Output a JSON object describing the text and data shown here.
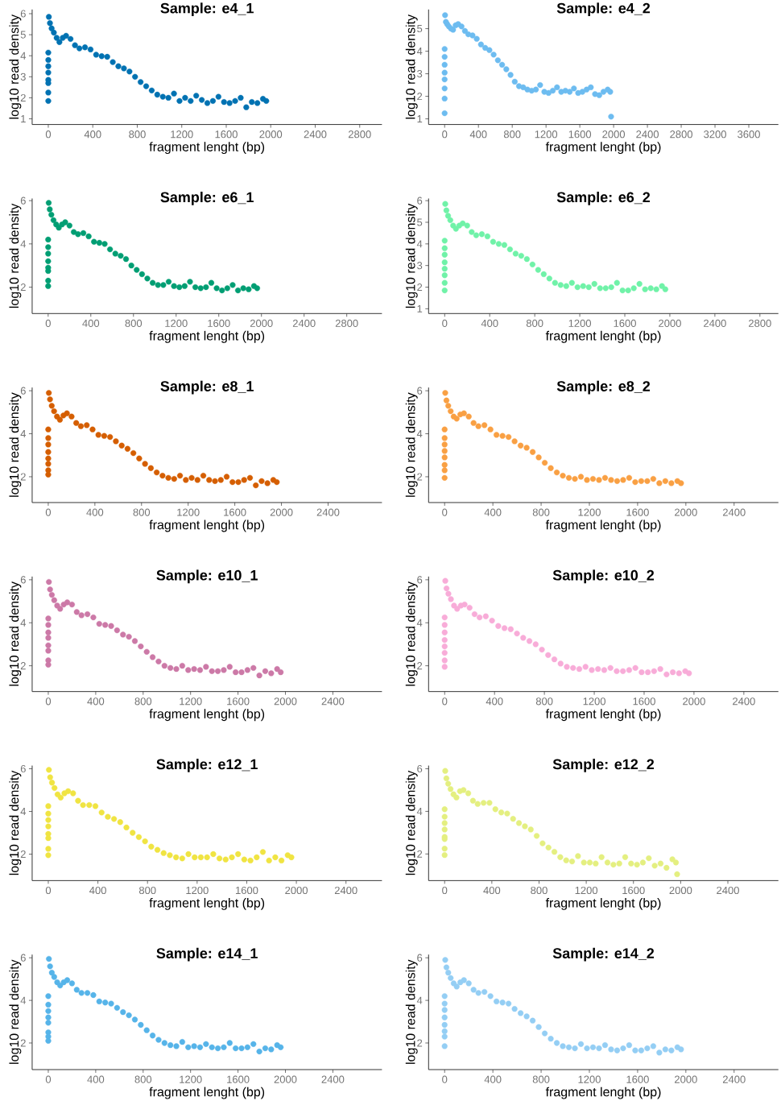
{
  "chart_data": [
    {
      "type": "scatter",
      "title": "Sample: e4_1",
      "xlabel": "fragment lenght (bp)",
      "ylabel": "log10 read density",
      "color": "#0072b2",
      "marker": "circle",
      "xlim": [
        -145,
        3000
      ],
      "xticks": [
        0,
        400,
        800,
        1200,
        1600,
        2000,
        2400,
        2800
      ],
      "ylim": [
        0.73,
        6.2
      ],
      "yticks": [
        1,
        2,
        3,
        4,
        5,
        6
      ],
      "x": [
        0,
        0,
        0,
        0,
        0,
        0,
        0,
        0,
        5,
        15,
        30,
        50,
        75,
        100,
        130,
        160,
        200,
        240,
        280,
        330,
        380,
        430,
        480,
        530,
        580,
        630,
        680,
        730,
        780,
        830,
        880,
        930,
        980,
        1030,
        1080,
        1130,
        1180,
        1230,
        1280,
        1330,
        1380,
        1430,
        1480,
        1530,
        1580,
        1630,
        1680,
        1730,
        1780,
        1830,
        1880,
        1930,
        1960
      ],
      "values": [
        4.15,
        3.8,
        3.5,
        3.2,
        2.85,
        2.7,
        2.25,
        1.85,
        5.85,
        5.55,
        5.3,
        5.1,
        4.85,
        4.65,
        4.85,
        4.95,
        4.8,
        4.5,
        4.35,
        4.4,
        4.3,
        4.05,
        3.98,
        3.95,
        3.7,
        3.5,
        3.4,
        3.25,
        3.0,
        2.75,
        2.55,
        2.35,
        2.15,
        2.05,
        2.0,
        2.2,
        1.85,
        2.0,
        1.85,
        2.1,
        1.9,
        1.75,
        1.85,
        2.05,
        1.8,
        1.75,
        1.85,
        2.0,
        1.55,
        1.8,
        1.75,
        1.95,
        1.85
      ]
    },
    {
      "type": "scatter",
      "title": "Sample: e4_2",
      "xlabel": "fragment lenght (bp)",
      "ylabel": "log10 read density",
      "color": "#6dbcf0",
      "marker": "circle",
      "xlim": [
        -190,
        3950
      ],
      "xticks": [
        0,
        400,
        800,
        1200,
        1600,
        2000,
        2400,
        2800,
        3200,
        3600
      ],
      "ylim": [
        0.75,
        5.85
      ],
      "yticks": [
        1,
        2,
        3,
        4,
        5
      ],
      "x": [
        0,
        0,
        0,
        0,
        0,
        0,
        0,
        0,
        5,
        15,
        30,
        50,
        75,
        100,
        130,
        160,
        200,
        240,
        280,
        330,
        380,
        430,
        480,
        530,
        580,
        630,
        680,
        730,
        780,
        830,
        880,
        930,
        980,
        1030,
        1080,
        1130,
        1180,
        1230,
        1280,
        1330,
        1380,
        1430,
        1480,
        1530,
        1580,
        1630,
        1680,
        1730,
        1780,
        1830,
        1880,
        1930,
        1960,
        1970
      ],
      "values": [
        4.1,
        3.75,
        3.4,
        3.05,
        2.75,
        2.35,
        1.9,
        1.25,
        5.6,
        5.3,
        5.2,
        5.1,
        5.0,
        4.95,
        5.15,
        5.2,
        5.1,
        4.9,
        4.75,
        4.7,
        4.55,
        4.3,
        4.15,
        4.05,
        3.85,
        3.6,
        3.4,
        3.2,
        2.95,
        2.65,
        2.45,
        2.4,
        2.3,
        2.25,
        2.3,
        2.5,
        2.2,
        2.15,
        2.25,
        2.4,
        2.2,
        2.25,
        2.2,
        2.35,
        2.15,
        2.2,
        2.3,
        2.4,
        2.1,
        2.05,
        2.2,
        2.3,
        2.2,
        1.1
      ]
    },
    {
      "type": "scatter",
      "title": "Sample: e6_1",
      "xlabel": "fragment lenght (bp)",
      "ylabel": "log10 read density",
      "color": "#009e73",
      "marker": "circle",
      "xlim": [
        -150,
        3130
      ],
      "xticks": [
        0,
        400,
        800,
        1200,
        1600,
        2000,
        2400,
        2800
      ],
      "ylim": [
        0.78,
        6.1
      ],
      "yticks": [
        2,
        4,
        6
      ],
      "x": [
        0,
        0,
        0,
        0,
        0,
        0,
        0,
        0,
        5,
        15,
        30,
        50,
        75,
        100,
        130,
        160,
        200,
        240,
        280,
        330,
        380,
        430,
        480,
        530,
        580,
        630,
        680,
        730,
        780,
        830,
        880,
        930,
        980,
        1030,
        1080,
        1130,
        1180,
        1230,
        1280,
        1330,
        1380,
        1430,
        1480,
        1530,
        1580,
        1630,
        1680,
        1730,
        1780,
        1830,
        1880,
        1930,
        1960
      ],
      "values": [
        4.2,
        3.85,
        3.55,
        3.2,
        2.9,
        2.75,
        2.3,
        2.05,
        5.9,
        5.6,
        5.35,
        5.1,
        4.9,
        4.75,
        4.9,
        5.0,
        4.85,
        4.55,
        4.45,
        4.5,
        4.35,
        4.1,
        4.05,
        4.0,
        3.75,
        3.55,
        3.45,
        3.3,
        3.0,
        2.8,
        2.6,
        2.4,
        2.2,
        2.1,
        2.1,
        2.25,
        2.05,
        2.0,
        2.05,
        2.25,
        2.0,
        1.95,
        2.0,
        2.2,
        1.95,
        1.85,
        1.95,
        2.1,
        1.85,
        1.95,
        1.9,
        2.05,
        1.95
      ]
    },
    {
      "type": "scatter",
      "title": "Sample: e6_2",
      "xlabel": "fragment lenght (bp)",
      "ylabel": "log10 read density",
      "color": "#70f2a8",
      "marker": "circle",
      "xlim": [
        -143,
        2964
      ],
      "xticks": [
        0,
        400,
        800,
        1200,
        1600,
        2000,
        2400,
        2800
      ],
      "ylim": [
        0.78,
        6.1
      ],
      "yticks": [
        1,
        2,
        3,
        4,
        5,
        6
      ],
      "x": [
        0,
        0,
        0,
        0,
        0,
        0,
        0,
        0,
        5,
        15,
        30,
        50,
        75,
        100,
        130,
        160,
        200,
        240,
        280,
        330,
        380,
        430,
        480,
        530,
        580,
        630,
        680,
        730,
        780,
        830,
        880,
        930,
        980,
        1030,
        1080,
        1130,
        1180,
        1230,
        1280,
        1330,
        1380,
        1430,
        1480,
        1530,
        1580,
        1630,
        1680,
        1730,
        1780,
        1830,
        1880,
        1930,
        1960
      ],
      "values": [
        4.15,
        3.8,
        3.5,
        3.15,
        2.85,
        2.55,
        2.2,
        1.85,
        5.85,
        5.55,
        5.3,
        5.1,
        4.85,
        4.7,
        4.85,
        4.95,
        4.85,
        4.55,
        4.4,
        4.45,
        4.35,
        4.1,
        4.0,
        3.95,
        3.75,
        3.55,
        3.45,
        3.3,
        3.05,
        2.8,
        2.6,
        2.4,
        2.2,
        2.1,
        2.05,
        2.2,
        2.0,
        2.05,
        2.0,
        2.15,
        1.95,
        1.95,
        2.0,
        2.2,
        1.85,
        1.85,
        1.95,
        2.15,
        1.9,
        1.95,
        1.9,
        2.05,
        1.9
      ]
    },
    {
      "type": "scatter",
      "title": "Sample: e8_1",
      "xlabel": "fragment lenght (bp)",
      "ylabel": "log10 read density",
      "color": "#d55e00",
      "marker": "circle",
      "xlim": [
        -138,
        2862
      ],
      "xticks": [
        0,
        400,
        800,
        1200,
        1600,
        2000,
        2400
      ],
      "ylim": [
        0.8,
        6.15
      ],
      "yticks": [
        2,
        4,
        6
      ],
      "x": [
        0,
        0,
        0,
        0,
        0,
        0,
        0,
        0,
        5,
        15,
        30,
        50,
        75,
        100,
        130,
        160,
        200,
        240,
        280,
        330,
        380,
        430,
        480,
        530,
        580,
        630,
        680,
        730,
        780,
        830,
        880,
        930,
        980,
        1030,
        1080,
        1130,
        1180,
        1230,
        1280,
        1330,
        1380,
        1430,
        1480,
        1530,
        1580,
        1630,
        1680,
        1730,
        1780,
        1830,
        1880,
        1930,
        1960
      ],
      "values": [
        4.2,
        3.8,
        3.5,
        3.15,
        2.85,
        2.6,
        2.3,
        2.1,
        5.9,
        5.6,
        5.3,
        5.05,
        4.8,
        4.65,
        4.85,
        4.95,
        4.8,
        4.5,
        4.35,
        4.4,
        4.2,
        3.95,
        3.9,
        3.85,
        3.65,
        3.45,
        3.3,
        3.1,
        2.85,
        2.6,
        2.4,
        2.2,
        2.05,
        1.95,
        1.9,
        2.05,
        1.85,
        1.95,
        1.85,
        2.05,
        1.85,
        1.8,
        1.85,
        2.0,
        1.75,
        1.75,
        1.85,
        1.95,
        1.6,
        1.8,
        1.7,
        1.85,
        1.75
      ]
    },
    {
      "type": "scatter",
      "title": "Sample: e8_2",
      "xlabel": "fragment lenght (bp)",
      "ylabel": "log10 read density",
      "color": "#f9a043",
      "marker": "circle",
      "xlim": [
        -133,
        2767
      ],
      "xticks": [
        0,
        400,
        800,
        1200,
        1600,
        2000,
        2400
      ],
      "ylim": [
        0.8,
        6.15
      ],
      "yticks": [
        2,
        4,
        6
      ],
      "x": [
        0,
        0,
        0,
        0,
        0,
        0,
        0,
        0,
        5,
        15,
        30,
        50,
        75,
        100,
        130,
        160,
        200,
        240,
        280,
        330,
        380,
        430,
        480,
        530,
        580,
        630,
        680,
        730,
        780,
        830,
        880,
        930,
        980,
        1030,
        1080,
        1130,
        1180,
        1230,
        1280,
        1330,
        1380,
        1430,
        1480,
        1530,
        1580,
        1630,
        1680,
        1730,
        1780,
        1830,
        1880,
        1930,
        1960
      ],
      "values": [
        4.2,
        3.8,
        3.5,
        3.2,
        2.9,
        2.55,
        2.3,
        1.95,
        5.9,
        5.55,
        5.3,
        5.05,
        4.8,
        4.7,
        4.9,
        4.95,
        4.8,
        4.5,
        4.35,
        4.4,
        4.2,
        3.95,
        3.9,
        3.85,
        3.65,
        3.45,
        3.35,
        3.15,
        2.9,
        2.65,
        2.4,
        2.2,
        2.05,
        1.95,
        1.9,
        2.0,
        1.85,
        1.9,
        1.85,
        1.95,
        1.85,
        1.8,
        1.85,
        1.95,
        1.75,
        1.8,
        1.8,
        1.9,
        1.7,
        1.8,
        1.7,
        1.8,
        1.7
      ]
    },
    {
      "type": "scatter",
      "title": "Sample: e10_1",
      "xlabel": "fragment lenght (bp)",
      "ylabel": "log10 read density",
      "color": "#cc79a7",
      "marker": "circle",
      "xlim": [
        -136,
        2814
      ],
      "xticks": [
        0,
        400,
        800,
        1200,
        1600,
        2000,
        2400
      ],
      "ylim": [
        0.8,
        6.15
      ],
      "yticks": [
        2,
        4,
        6
      ],
      "x": [
        0,
        0,
        0,
        0,
        0,
        0,
        0,
        0,
        5,
        15,
        30,
        50,
        75,
        100,
        130,
        160,
        200,
        240,
        280,
        330,
        380,
        430,
        480,
        530,
        580,
        630,
        680,
        730,
        780,
        830,
        880,
        930,
        980,
        1030,
        1080,
        1130,
        1180,
        1230,
        1280,
        1330,
        1380,
        1430,
        1480,
        1530,
        1580,
        1630,
        1680,
        1730,
        1780,
        1830,
        1880,
        1930,
        1960
      ],
      "values": [
        4.2,
        3.9,
        3.55,
        3.3,
        2.95,
        2.7,
        2.25,
        2.05,
        5.9,
        5.55,
        5.3,
        5.05,
        4.8,
        4.65,
        4.85,
        4.95,
        4.85,
        4.5,
        4.35,
        4.4,
        4.25,
        3.95,
        3.9,
        3.85,
        3.65,
        3.45,
        3.35,
        3.15,
        2.9,
        2.65,
        2.4,
        2.2,
        2.0,
        1.9,
        1.85,
        2.0,
        1.8,
        1.85,
        1.8,
        1.95,
        1.75,
        1.75,
        1.8,
        1.95,
        1.7,
        1.7,
        1.8,
        1.9,
        1.55,
        1.75,
        1.65,
        1.85,
        1.7
      ]
    },
    {
      "type": "scatter",
      "title": "Sample: e10_2",
      "xlabel": "fragment lenght (bp)",
      "ylabel": "log10 read density",
      "color": "#f8acd8",
      "marker": "circle",
      "xlim": [
        -129,
        2677
      ],
      "xticks": [
        0,
        400,
        800,
        1200,
        1600,
        2000,
        2400
      ],
      "ylim": [
        0.8,
        6.15
      ],
      "yticks": [
        2,
        4,
        6
      ],
      "x": [
        0,
        0,
        0,
        0,
        0,
        0,
        0,
        0,
        5,
        15,
        30,
        50,
        75,
        100,
        130,
        160,
        200,
        240,
        280,
        330,
        380,
        430,
        480,
        530,
        580,
        630,
        680,
        730,
        780,
        830,
        880,
        930,
        980,
        1030,
        1080,
        1130,
        1180,
        1230,
        1280,
        1330,
        1380,
        1430,
        1480,
        1530,
        1580,
        1630,
        1680,
        1730,
        1780,
        1830,
        1880,
        1930,
        1960
      ],
      "values": [
        4.25,
        3.9,
        3.55,
        3.2,
        2.9,
        2.6,
        2.25,
        1.95,
        5.95,
        5.6,
        5.35,
        5.1,
        4.8,
        4.65,
        4.8,
        4.85,
        4.7,
        4.4,
        4.25,
        4.3,
        4.1,
        3.85,
        3.75,
        3.7,
        3.5,
        3.3,
        3.15,
        3.0,
        2.75,
        2.5,
        2.3,
        2.1,
        1.95,
        1.9,
        1.85,
        1.95,
        1.8,
        1.85,
        1.8,
        1.9,
        1.75,
        1.75,
        1.8,
        1.9,
        1.7,
        1.7,
        1.75,
        1.85,
        1.6,
        1.7,
        1.65,
        1.75,
        1.65
      ]
    },
    {
      "type": "scatter",
      "title": "Sample: e12_1",
      "xlabel": "fragment lenght (bp)",
      "ylabel": "log10 read density",
      "color": "#f0e442",
      "marker": "circle",
      "xlim": [
        -130,
        2690
      ],
      "xticks": [
        0,
        400,
        800,
        1200,
        1600,
        2000,
        2400
      ],
      "ylim": [
        0.76,
        6.15
      ],
      "yticks": [
        2,
        4,
        6
      ],
      "x": [
        0,
        0,
        0,
        0,
        0,
        0,
        0,
        0,
        5,
        15,
        30,
        50,
        75,
        100,
        130,
        160,
        200,
        240,
        280,
        330,
        380,
        430,
        480,
        530,
        580,
        630,
        680,
        730,
        780,
        830,
        880,
        930,
        980,
        1030,
        1080,
        1130,
        1180,
        1230,
        1280,
        1330,
        1380,
        1430,
        1480,
        1530,
        1580,
        1630,
        1680,
        1730,
        1780,
        1830,
        1880,
        1930,
        1960
      ],
      "values": [
        4.25,
        3.9,
        3.6,
        3.3,
        2.95,
        2.75,
        2.25,
        1.95,
        5.95,
        5.6,
        5.35,
        5.1,
        4.8,
        4.65,
        4.85,
        4.95,
        4.85,
        4.5,
        4.3,
        4.3,
        4.25,
        3.95,
        3.75,
        3.65,
        3.5,
        3.25,
        3.0,
        2.8,
        2.6,
        2.35,
        2.2,
        2.05,
        1.95,
        1.85,
        1.8,
        2.0,
        1.85,
        1.85,
        1.85,
        2.0,
        1.8,
        1.75,
        1.85,
        2.0,
        1.75,
        1.7,
        1.85,
        2.1,
        1.7,
        1.85,
        1.7,
        1.95,
        1.85
      ]
    },
    {
      "type": "scatter",
      "title": "Sample: e12_2",
      "xlabel": "fragment lenght (bp)",
      "ylabel": "log10 read density",
      "color": "#e4ef80",
      "marker": "circle",
      "xlim": [
        -136,
        2828
      ],
      "xticks": [
        0,
        400,
        800,
        1200,
        1600,
        2000,
        2400
      ],
      "ylim": [
        0.75,
        6.15
      ],
      "yticks": [
        2,
        4,
        6
      ],
      "x": [
        0,
        0,
        0,
        0,
        0,
        0,
        0,
        0,
        5,
        15,
        30,
        50,
        75,
        100,
        130,
        160,
        200,
        240,
        280,
        330,
        380,
        430,
        480,
        530,
        580,
        630,
        680,
        730,
        780,
        830,
        880,
        930,
        980,
        1030,
        1080,
        1130,
        1180,
        1230,
        1280,
        1330,
        1380,
        1430,
        1480,
        1530,
        1580,
        1630,
        1680,
        1730,
        1780,
        1830,
        1880,
        1930,
        1960,
        1970
      ],
      "values": [
        4.1,
        3.75,
        3.45,
        3.15,
        2.8,
        2.7,
        2.25,
        1.95,
        5.9,
        5.55,
        5.3,
        5.05,
        4.8,
        4.65,
        4.95,
        5.0,
        4.85,
        4.5,
        4.35,
        4.4,
        4.4,
        4.1,
        3.95,
        3.9,
        3.65,
        3.45,
        3.3,
        3.15,
        2.85,
        2.5,
        2.3,
        2.1,
        1.85,
        1.7,
        1.65,
        1.9,
        1.6,
        1.6,
        1.55,
        1.85,
        1.6,
        1.5,
        1.55,
        1.85,
        1.55,
        1.5,
        1.6,
        1.8,
        1.45,
        1.55,
        1.35,
        1.75,
        1.6,
        1.05
      ]
    },
    {
      "type": "scatter",
      "title": "Sample: e14_1",
      "xlabel": "fragment lenght (bp)",
      "ylabel": "log10 read density",
      "color": "#56b4e9",
      "marker": "circle",
      "xlim": [
        -136,
        2814
      ],
      "xticks": [
        0,
        400,
        800,
        1200,
        1600,
        2000,
        2400
      ],
      "ylim": [
        0.75,
        6.15
      ],
      "yticks": [
        2,
        4,
        6
      ],
      "x": [
        0,
        0,
        0,
        0,
        0,
        0,
        0,
        0,
        5,
        15,
        30,
        50,
        75,
        100,
        130,
        160,
        200,
        240,
        280,
        330,
        380,
        430,
        480,
        530,
        580,
        630,
        680,
        730,
        780,
        830,
        880,
        930,
        980,
        1030,
        1080,
        1130,
        1180,
        1230,
        1280,
        1330,
        1380,
        1430,
        1480,
        1530,
        1580,
        1630,
        1680,
        1730,
        1780,
        1830,
        1880,
        1930,
        1960
      ],
      "values": [
        4.2,
        3.8,
        3.5,
        3.2,
        2.95,
        2.5,
        2.3,
        2.1,
        5.95,
        5.6,
        5.3,
        5.1,
        4.85,
        4.7,
        4.85,
        4.95,
        4.8,
        4.5,
        4.35,
        4.35,
        4.25,
        3.95,
        3.9,
        3.85,
        3.65,
        3.45,
        3.3,
        3.1,
        2.85,
        2.6,
        2.35,
        2.15,
        2.0,
        1.9,
        1.85,
        2.05,
        1.8,
        1.85,
        1.8,
        1.95,
        1.8,
        1.75,
        1.8,
        2.0,
        1.75,
        1.75,
        1.8,
        1.95,
        1.6,
        1.75,
        1.7,
        1.9,
        1.8
      ]
    },
    {
      "type": "scatter",
      "title": "Sample: e14_2",
      "xlabel": "fragment lenght (bp)",
      "ylabel": "log10 read density",
      "color": "#94cef4",
      "marker": "circle",
      "xlim": [
        -133,
        2767
      ],
      "xticks": [
        0,
        400,
        800,
        1200,
        1600,
        2000,
        2400
      ],
      "ylim": [
        0.75,
        6.15
      ],
      "yticks": [
        2,
        4,
        6
      ],
      "x": [
        0,
        0,
        0,
        0,
        0,
        0,
        0,
        0,
        5,
        15,
        30,
        50,
        75,
        100,
        130,
        160,
        200,
        240,
        280,
        330,
        380,
        430,
        480,
        530,
        580,
        630,
        680,
        730,
        780,
        830,
        880,
        930,
        980,
        1030,
        1080,
        1130,
        1180,
        1230,
        1280,
        1330,
        1380,
        1430,
        1480,
        1530,
        1580,
        1630,
        1680,
        1730,
        1780,
        1830,
        1880,
        1930,
        1960
      ],
      "values": [
        4.2,
        3.85,
        3.55,
        3.2,
        2.85,
        2.55,
        2.3,
        1.85,
        5.9,
        5.55,
        5.3,
        5.05,
        4.8,
        4.65,
        4.85,
        4.95,
        4.8,
        4.5,
        4.35,
        4.4,
        4.2,
        3.95,
        3.9,
        3.85,
        3.6,
        3.4,
        3.25,
        3.05,
        2.75,
        2.45,
        2.2,
        2.0,
        1.85,
        1.8,
        1.75,
        1.95,
        1.75,
        1.8,
        1.75,
        1.9,
        1.7,
        1.65,
        1.75,
        1.9,
        1.65,
        1.65,
        1.75,
        1.85,
        1.55,
        1.7,
        1.65,
        1.8,
        1.7
      ]
    }
  ]
}
